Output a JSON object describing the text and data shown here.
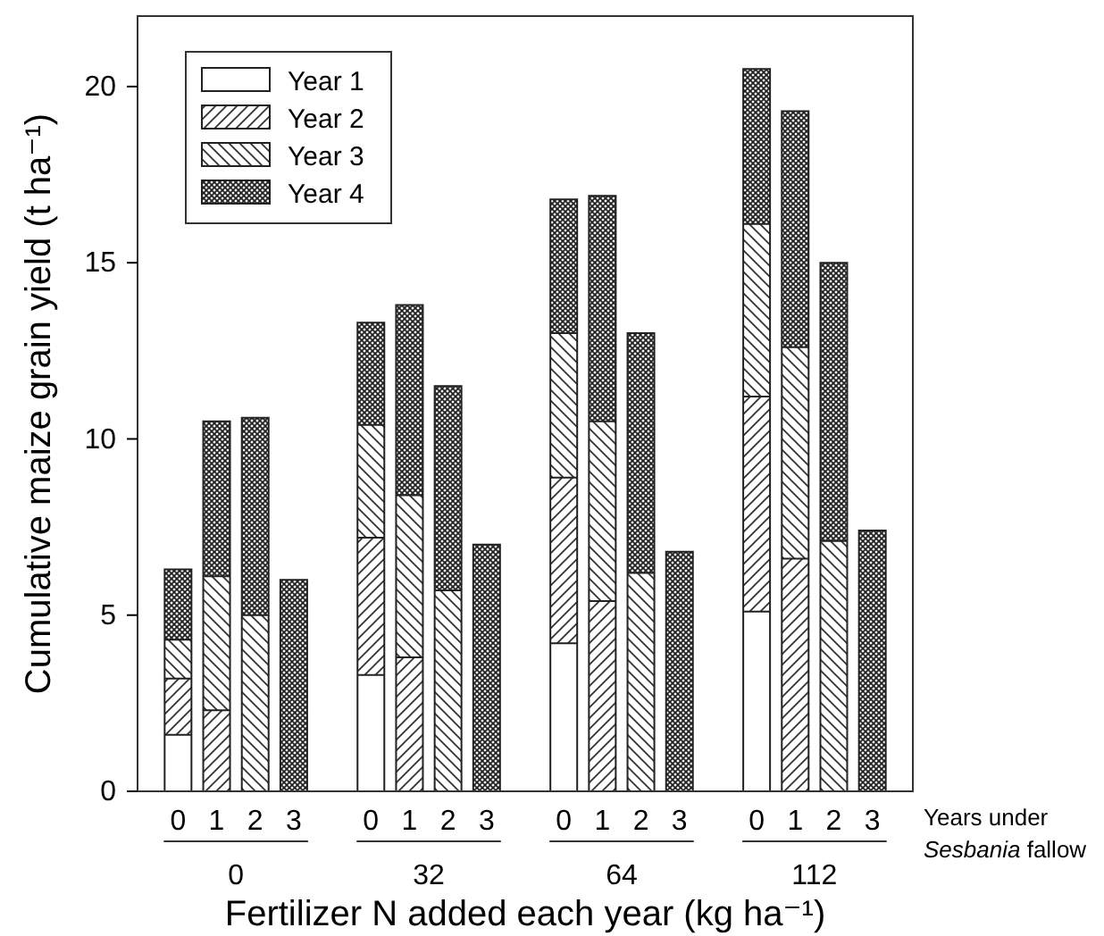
{
  "chart_data": {
    "type": "bar",
    "stacked": true,
    "xlabel": "Fertilizer N added each year (kg ha⁻¹)",
    "ylabel": "Cumulative maize grain yield (t ha⁻¹)",
    "categories": [
      "0",
      "1",
      "2",
      "3",
      null,
      "0",
      "1",
      "2",
      "3",
      null,
      "0",
      "1",
      "2",
      "3",
      null,
      "0",
      "1",
      "2",
      "3"
    ],
    "annotations": [
      "Years under Sesbania fallow",
      "0",
      "32",
      "64",
      "112"
    ],
    "series": [
      {
        "name": "Year 1",
        "color": "#ffffff",
        "values": [
          1.6,
          0,
          0,
          0,
          null,
          3.3,
          0,
          0,
          0,
          null,
          4.2,
          0,
          0,
          0,
          null,
          5.1,
          0,
          0,
          0
        ]
      },
      {
        "name": "Year 2",
        "color": "#333333",
        "values": [
          1.6,
          2.3,
          0,
          0,
          null,
          3.9,
          3.8,
          0,
          0,
          null,
          4.7,
          5.4,
          0,
          0,
          null,
          6.1,
          6.6,
          0,
          0
        ]
      },
      {
        "name": "Year 3",
        "color": "#333333",
        "values": [
          1.1,
          3.8,
          5.0,
          0,
          null,
          3.2,
          4.6,
          5.7,
          0,
          null,
          4.1,
          5.1,
          6.2,
          0,
          null,
          4.9,
          6.0,
          7.1,
          0
        ]
      },
      {
        "name": "Year 4",
        "color": "#222222",
        "values": [
          2.0,
          4.4,
          5.6,
          6.0,
          null,
          2.9,
          5.4,
          5.8,
          7.0,
          null,
          3.8,
          6.4,
          6.8,
          6.8,
          null,
          4.4,
          6.7,
          7.9,
          7.4
        ]
      }
    ],
    "ylim": [
      0,
      22
    ],
    "yticks": [
      0,
      5,
      10,
      15,
      20
    ],
    "grid": false,
    "legend": "top left"
  }
}
